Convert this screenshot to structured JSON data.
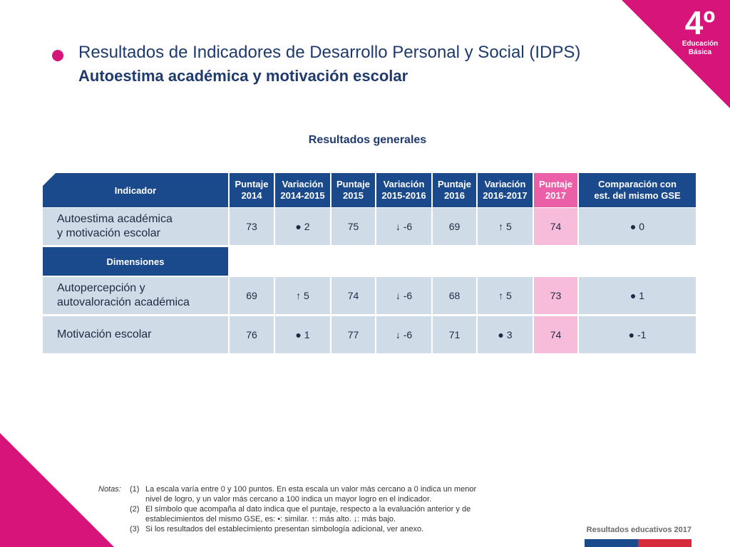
{
  "header": {
    "title": "Resultados de Indicadores de Desarrollo Personal y Social (IDPS)",
    "subtitle": "Autoestima académica y motivación escolar",
    "grade": "4º",
    "grade_label_1": "Educación",
    "grade_label_2": "Básica"
  },
  "section_title": "Resultados generales",
  "table": {
    "columns": [
      {
        "l1": "Indicador",
        "l2": ""
      },
      {
        "l1": "Puntaje",
        "l2": "2014"
      },
      {
        "l1": "Variación",
        "l2": "2014-2015"
      },
      {
        "l1": "Puntaje",
        "l2": "2015"
      },
      {
        "l1": "Variación",
        "l2": "2015-2016"
      },
      {
        "l1": "Puntaje",
        "l2": "2016"
      },
      {
        "l1": "Variación",
        "l2": "2016-2017"
      },
      {
        "l1": "Puntaje",
        "l2": "2017"
      },
      {
        "l1": "Comparación con",
        "l2": "est. del mismo GSE"
      }
    ],
    "main_row": {
      "label_1": "Autoestima académica",
      "label_2": "y motivación escolar",
      "values": [
        "73",
        "● 2",
        "75",
        "↓ -6",
        "69",
        "↑ 5",
        "74",
        "● 0"
      ]
    },
    "dimensions_label": "Dimensiones",
    "dim_rows": [
      {
        "label_1": "Autopercepción y",
        "label_2": "autovaloración académica",
        "values": [
          "69",
          "↑ 5",
          "74",
          "↓ -6",
          "68",
          "↑ 5",
          "73",
          "● 1"
        ]
      },
      {
        "label_1": "Motivación escolar",
        "label_2": "",
        "values": [
          "76",
          "● 1",
          "77",
          "↓ -6",
          "71",
          "● 3",
          "74",
          "● -1"
        ]
      }
    ]
  },
  "notes": {
    "lead": "Notas:",
    "items": [
      {
        "num": "(1)",
        "line1": "La escala varía entre 0 y 100 puntos. En esta escala un valor más cercano a 0 indica un menor",
        "line2": "nivel de logro, y un valor más cercano a 100 indica un mayor logro en el indicador."
      },
      {
        "num": "(2)",
        "line1": "El símbolo que acompaña al dato indica que el puntaje, respecto a la evaluación anterior y de",
        "line2": "establecimientos del mismo GSE, es:      •: similar.                    ↑: más alto.             ↓: más bajo."
      },
      {
        "num": "(3)",
        "line1": "Si los resultados del establecimiento presentan simbología adicional, ver anexo.",
        "line2": ""
      }
    ]
  },
  "footer": {
    "brand": "Resultados educativos 2017"
  },
  "colors": {
    "accent": "#d6147a",
    "navy": "#1b4a8c",
    "cell": "#cfdbe6",
    "pink_cell": "#f6bcd9",
    "pink_header": "#ea5fa8"
  }
}
